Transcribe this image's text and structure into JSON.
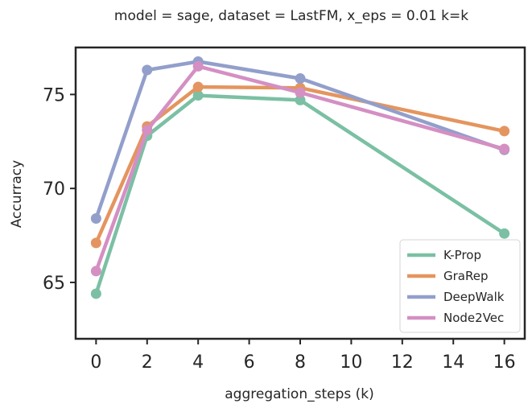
{
  "chart_data": {
    "type": "line",
    "title": "model = sage,  dataset = LastFM, x_eps = 0.01 k=k",
    "xlabel": "aggregation_steps (k)",
    "ylabel": "Accurracy",
    "x": [
      0,
      2,
      4,
      8,
      16
    ],
    "xlim": [
      -0.8,
      16.8
    ],
    "ylim": [
      62,
      77.5
    ],
    "xticks": [
      0,
      2,
      4,
      6,
      8,
      10,
      12,
      14,
      16
    ],
    "yticks": [
      65,
      70,
      75
    ],
    "grid": false,
    "legend_position": "lower-right",
    "series": [
      {
        "name": "K-Prop",
        "color": "#7bc0a4",
        "values": [
          64.4,
          72.8,
          74.95,
          74.7,
          67.6
        ]
      },
      {
        "name": "GraRep",
        "color": "#e4955f",
        "values": [
          67.1,
          73.3,
          75.4,
          75.35,
          73.05
        ]
      },
      {
        "name": "DeepWalk",
        "color": "#929fcb",
        "values": [
          68.4,
          76.3,
          76.75,
          75.85,
          72.05
        ]
      },
      {
        "name": "Node2Vec",
        "color": "#d48fc3",
        "values": [
          65.6,
          73.1,
          76.5,
          75.1,
          72.1
        ]
      }
    ]
  }
}
